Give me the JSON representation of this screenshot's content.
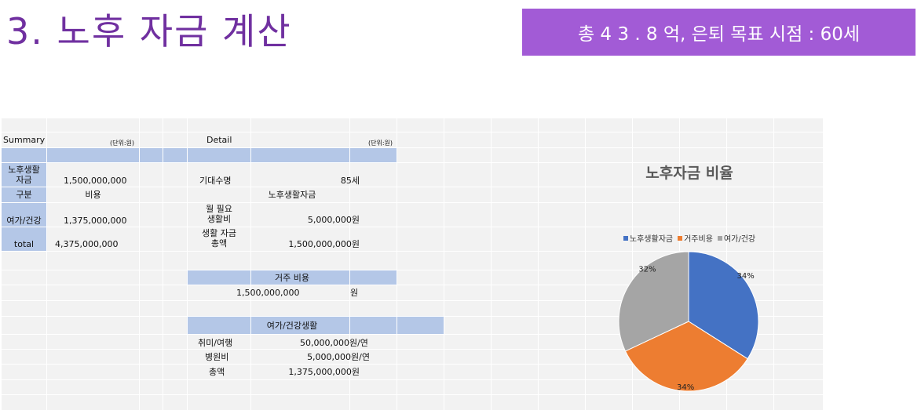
{
  "slide": {
    "title": "3. 노후 자금 계산",
    "banner": "총 4 3 . 8 억, 은퇴 목표 시점 : 60세"
  },
  "summary": {
    "header": "Summary",
    "unit": "(단위:원)",
    "rows": [
      {
        "label": "노후생활\n자금",
        "value": "1,500,000,000"
      },
      {
        "label": "구분",
        "value": "비용"
      },
      {
        "label": "여가/건강",
        "value": "1,375,000,000"
      },
      {
        "label": "total",
        "value": "4,375,000,000"
      }
    ]
  },
  "detail": {
    "header": "Detail",
    "unit": "(단위:원)",
    "life_expectancy_label": "기대수명",
    "life_expectancy_value": "85세",
    "living_section": "노후생활자금",
    "monthly_label": "월 필요\n생활비",
    "monthly_value": "5,000,000원",
    "living_total_label": "생활 자금\n총액",
    "living_total_value": "1,500,000,000원",
    "housing_section": "거주 비용",
    "housing_value": "1,500,000,000",
    "housing_unit": "원",
    "leisure_section": "여가/건강생활",
    "leisure_rows": [
      {
        "label": "취미/여행",
        "value": "50,000,000원/연"
      },
      {
        "label": "병원비",
        "value": "5,000,000원/연"
      },
      {
        "label": "총액",
        "value": "1,375,000,000원"
      }
    ]
  },
  "chart_data": {
    "type": "pie",
    "title": "노후자금 비율",
    "legend_position": "top",
    "categories": [
      "노후생활자금",
      "거주비용",
      "여가/건강"
    ],
    "values": [
      34,
      34,
      32
    ],
    "labels": [
      "34%",
      "34%",
      "32%"
    ],
    "colors": [
      "#4472c4",
      "#ed7d31",
      "#a5a5a5"
    ]
  }
}
